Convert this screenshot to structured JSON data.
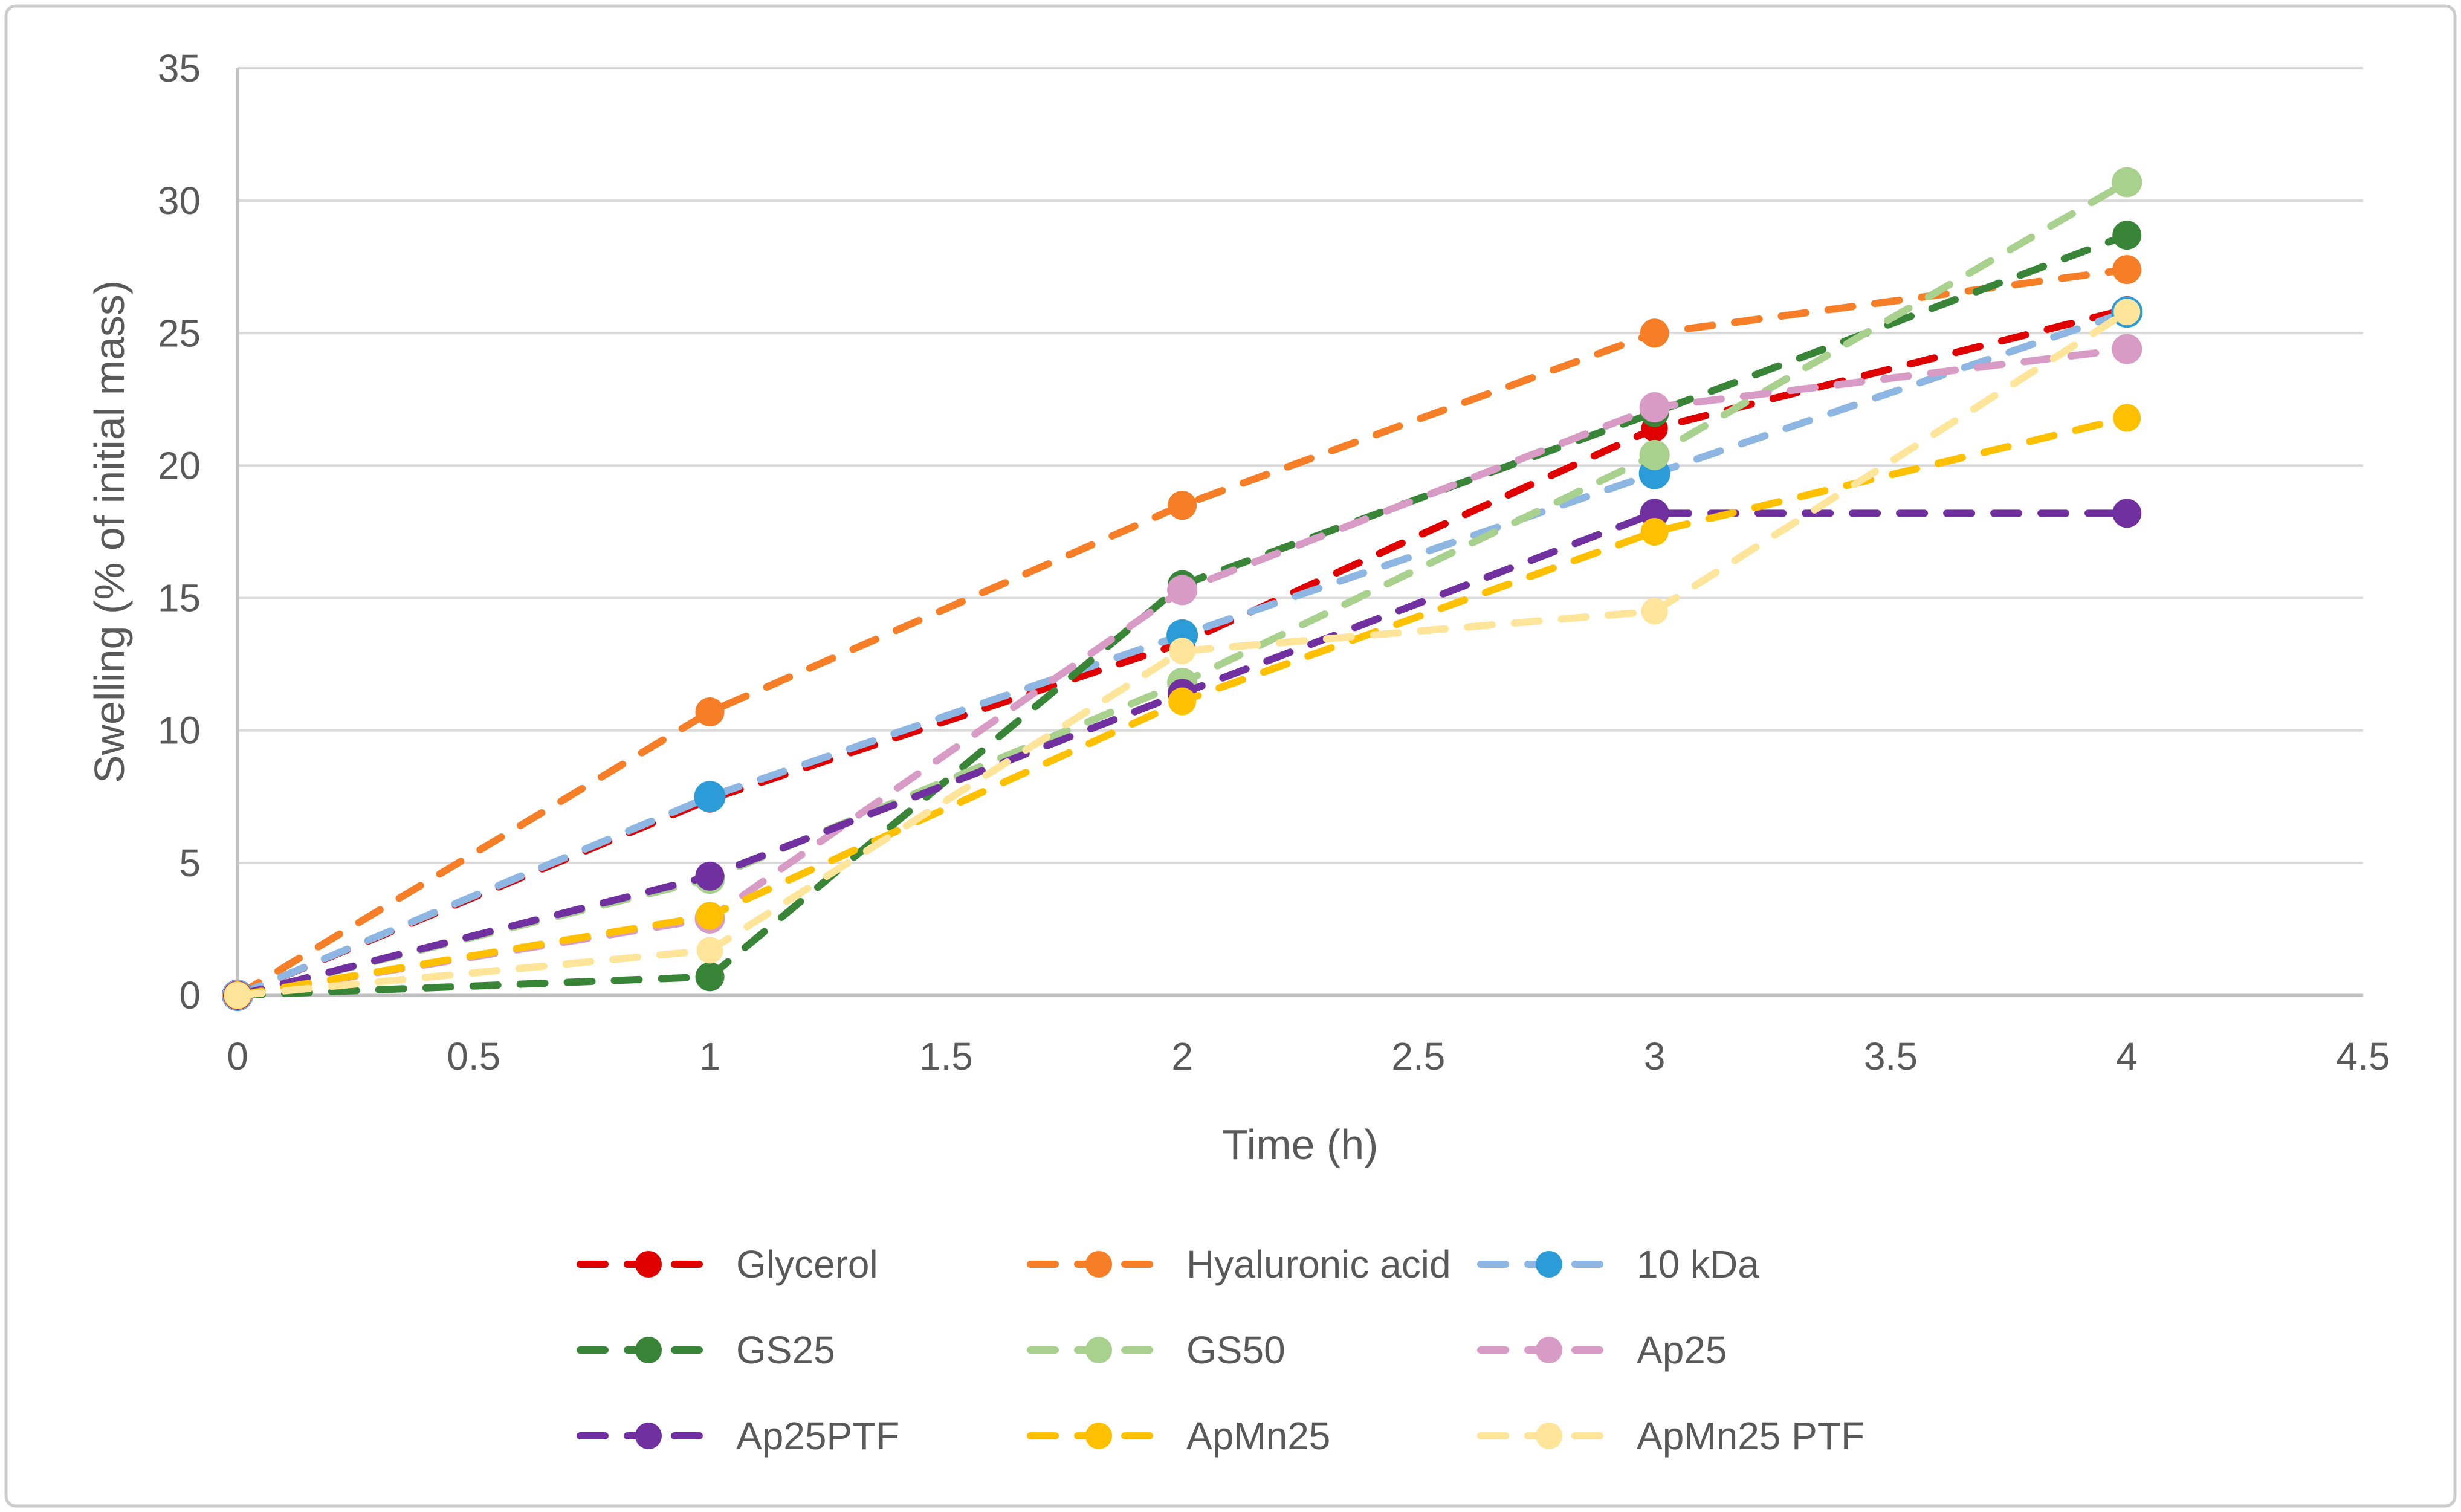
{
  "figure_title": "",
  "chart_data": {
    "type": "line",
    "title": "",
    "xlabel": "Time (h)",
    "ylabel": "Swelling (% of initial mass)",
    "x": [
      0,
      1,
      2,
      3,
      4
    ],
    "xlim": [
      0,
      4.5
    ],
    "ylim": [
      0,
      35
    ],
    "x_ticks": [
      "0",
      "0.5",
      "1",
      "1.5",
      "2",
      "2.5",
      "3",
      "3.5",
      "4",
      "4.5"
    ],
    "y_ticks": [
      "0",
      "5",
      "10",
      "15",
      "20",
      "25",
      "30",
      "35"
    ],
    "grid": true,
    "gridlines": "horizontal",
    "line_style": "dashed",
    "markers": "circle",
    "legend_position": "bottom",
    "legend_columns": 3,
    "series": [
      {
        "name": "Glycerol",
        "color": "#E00000",
        "values": [
          0,
          7.4,
          13.3,
          21.4,
          25.9
        ]
      },
      {
        "name": "Hyaluronic acid",
        "color": "#F57E27",
        "values": [
          0,
          10.7,
          18.5,
          25.0,
          27.4
        ]
      },
      {
        "name": "10 kDa",
        "color": "#8DB7E2",
        "marker_color": "#2B9CD8",
        "values": [
          0,
          7.5,
          13.6,
          19.7,
          25.8
        ]
      },
      {
        "name": "GS25",
        "color": "#388538",
        "values": [
          0,
          0.7,
          15.5,
          22.0,
          28.7
        ]
      },
      {
        "name": "GS50",
        "color": "#A9D18E",
        "values": [
          0,
          4.4,
          11.8,
          20.4,
          30.7
        ]
      },
      {
        "name": "Ap25",
        "color": "#D89BC5",
        "values": [
          0,
          2.9,
          15.3,
          22.2,
          24.4
        ]
      },
      {
        "name": "Ap25PTF",
        "color": "#7030A0",
        "values": [
          0,
          4.5,
          11.4,
          18.2,
          18.2
        ]
      },
      {
        "name": "ApMn25",
        "color": "#FFC000",
        "values": [
          0,
          3.0,
          11.1,
          17.5,
          21.8
        ]
      },
      {
        "name": "ApMn25 PTF",
        "color": "#FFE599",
        "values": [
          0,
          1.7,
          13.0,
          14.5,
          25.8
        ]
      }
    ],
    "colors": {
      "grid": "#D9D9D9",
      "axis": "#BFBFBF",
      "text": "#595959",
      "border": "#CCCCCC",
      "background": "#FFFFFF"
    }
  }
}
